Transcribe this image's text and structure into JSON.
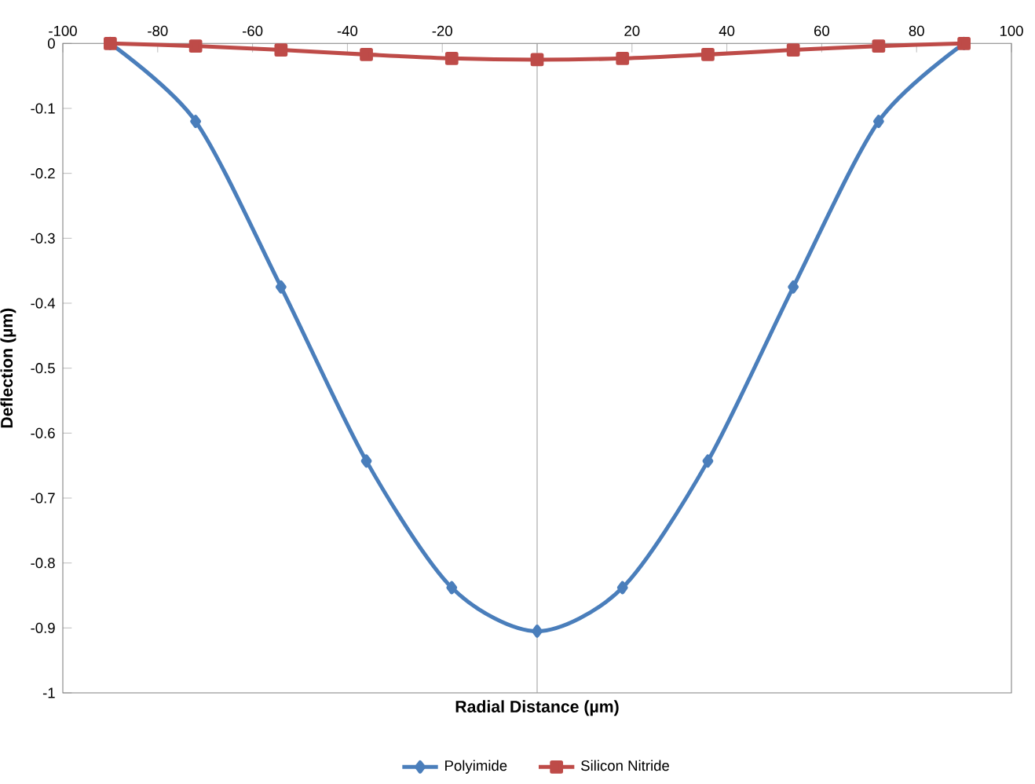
{
  "chart_data": {
    "type": "line",
    "xlabel": "Radial Distance (µm)",
    "ylabel": "Deflection (µm)",
    "x": [
      -90,
      -72,
      -54,
      -36,
      -18,
      0,
      18,
      36,
      54,
      72,
      90
    ],
    "series": [
      {
        "name": "Polyimide",
        "color": "#4a7ebb",
        "marker": "diamond",
        "values": [
          0,
          -0.12,
          -0.375,
          -0.643,
          -0.838,
          -0.905,
          -0.838,
          -0.643,
          -0.375,
          -0.12,
          0
        ]
      },
      {
        "name": "Silicon Nitride",
        "color": "#be4b48",
        "marker": "square",
        "values": [
          0,
          -0.004,
          -0.01,
          -0.017,
          -0.023,
          -0.025,
          -0.023,
          -0.017,
          -0.01,
          -0.004,
          0
        ]
      }
    ],
    "xlim": [
      -100,
      100
    ],
    "ylim": [
      -1,
      0
    ],
    "xticks": [
      -100,
      -80,
      -60,
      -40,
      -20,
      {
        "value": 0,
        "label": null
      },
      20,
      40,
      60,
      80,
      100
    ],
    "yticks": [
      -1,
      -0.9,
      -0.8,
      -0.7,
      -0.6,
      -0.5,
      -0.4,
      -0.3,
      -0.2,
      -0.1,
      0
    ],
    "ref_lines": [
      {
        "axis": "x",
        "value": 0,
        "color": "#a0a0a0"
      }
    ],
    "grid": false,
    "legend": "bottom",
    "line_style": "solid"
  }
}
